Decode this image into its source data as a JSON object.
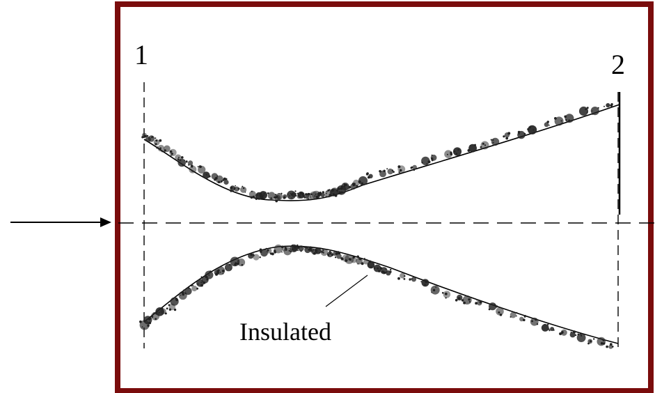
{
  "labels": {
    "station_1": "1",
    "station_2": "2",
    "wall": "Insulated"
  },
  "colors": {
    "frame": "#7a0c0c",
    "line": "#000000",
    "insulation": "#222222"
  }
}
